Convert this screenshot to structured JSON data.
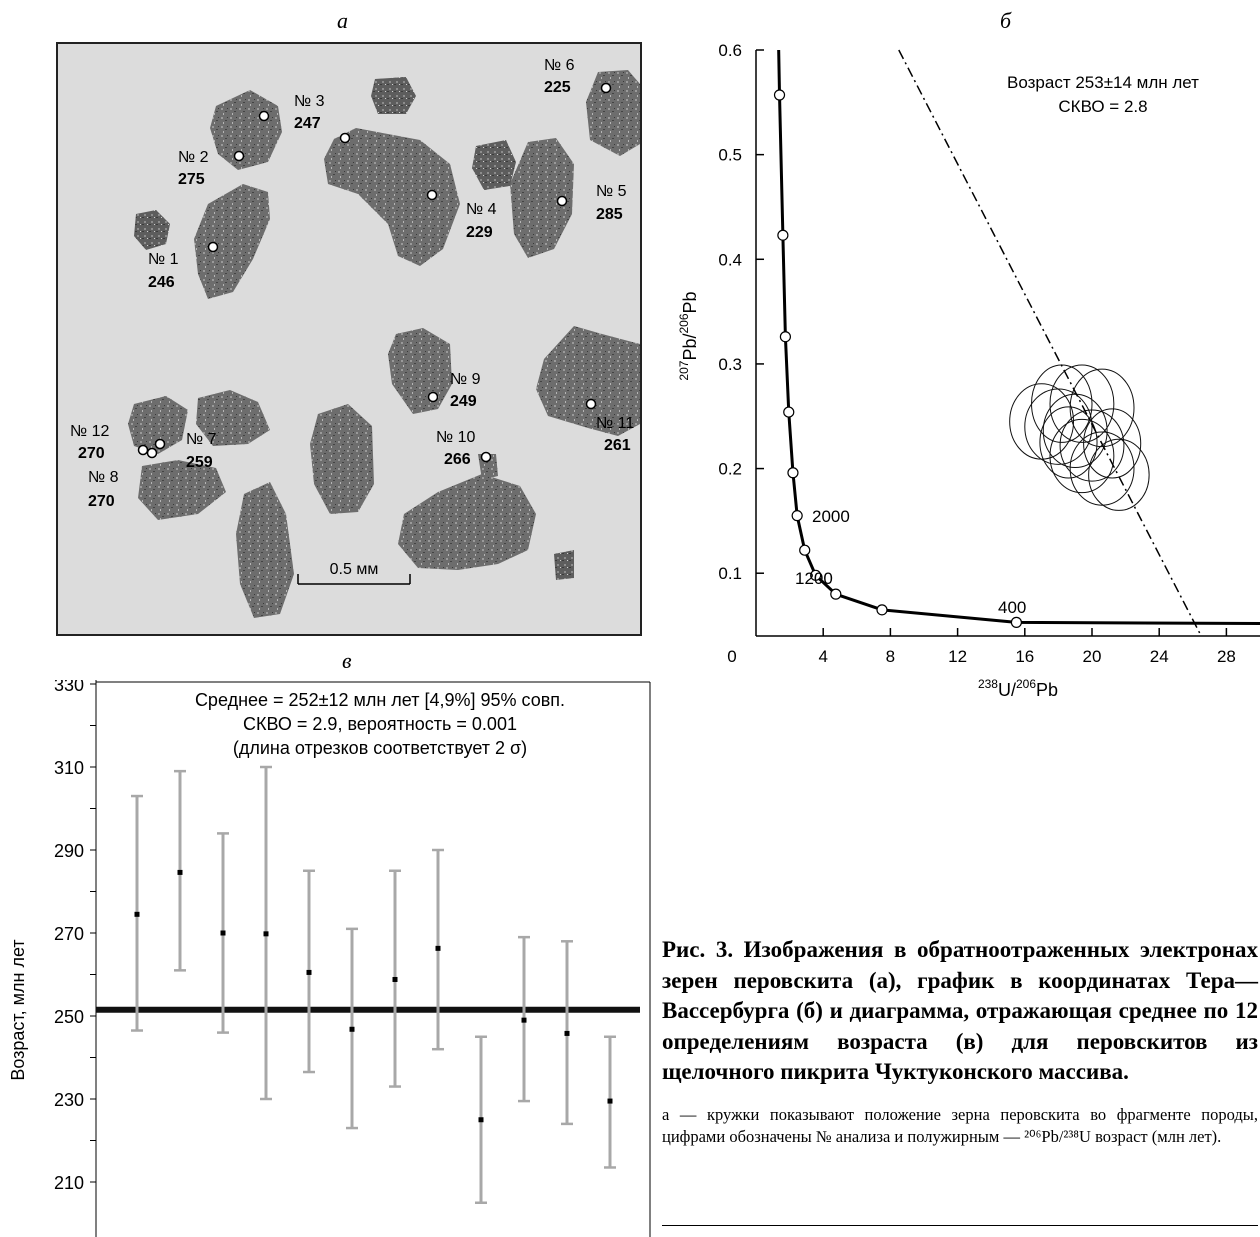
{
  "panel_a": {
    "letter": "а",
    "grains": [
      {
        "num": "№ 1",
        "age": "246"
      },
      {
        "num": "№ 2",
        "age": "275"
      },
      {
        "num": "№ 3",
        "age": "247"
      },
      {
        "num": "№ 4",
        "age": "229"
      },
      {
        "num": "№ 5",
        "age": "285"
      },
      {
        "num": "№ 6",
        "age": "225"
      },
      {
        "num": "№ 7",
        "age": "259"
      },
      {
        "num": "№ 8",
        "age": "270"
      },
      {
        "num": "№ 9",
        "age": "249"
      },
      {
        "num": "№ 10",
        "age": "266"
      },
      {
        "num": "№ 11",
        "age": "261"
      },
      {
        "num": "№ 12",
        "age": "270"
      }
    ],
    "scale_label": "0.5 мм"
  },
  "chart_data": [
    {
      "id": "б",
      "type": "scatter",
      "letter": "б",
      "xlabel_main": "U/",
      "xlabel_sup1": "238",
      "xlabel_sup2": "206",
      "xlabel_tail": "Pb",
      "ylabel_sup1": "207",
      "ylabel_mid": "Pb/",
      "ylabel_sup2": "206",
      "ylabel_tail": "Pb",
      "xlim": [
        0,
        30
      ],
      "ylim": [
        0.04,
        0.6
      ],
      "xticks": [
        "0",
        "4",
        "8",
        "12",
        "16",
        "20",
        "24",
        "28"
      ],
      "yticks": [
        "0.1",
        "0.2",
        "0.3",
        "0.4",
        "0.5",
        "0.6"
      ],
      "annotation_line1": "Возраст 253±14 млн лет",
      "annotation_line2": "СКВО = 2.8",
      "concordia_labels": [
        "2000",
        "1200",
        "400"
      ],
      "concordia_points": [
        {
          "x": 1.4,
          "y": 0.557
        },
        {
          "x": 1.6,
          "y": 0.423
        },
        {
          "x": 1.75,
          "y": 0.326
        },
        {
          "x": 1.95,
          "y": 0.254
        },
        {
          "x": 2.2,
          "y": 0.196
        },
        {
          "x": 2.45,
          "y": 0.155
        },
        {
          "x": 2.9,
          "y": 0.122
        },
        {
          "x": 3.55,
          "y": 0.098
        },
        {
          "x": 4.75,
          "y": 0.08
        },
        {
          "x": 7.5,
          "y": 0.065
        },
        {
          "x": 15.5,
          "y": 0.053
        }
      ],
      "discordia": {
        "x1": 8.5,
        "y1": 0.6,
        "x2": 26.5,
        "y2": 0.04
      },
      "ellipses": [
        {
          "x": 17.0,
          "y": 0.245,
          "rx": 1.9,
          "ry": 0.036
        },
        {
          "x": 18.2,
          "y": 0.262,
          "rx": 1.8,
          "ry": 0.037
        },
        {
          "x": 19.4,
          "y": 0.262,
          "rx": 1.9,
          "ry": 0.037
        },
        {
          "x": 20.6,
          "y": 0.258,
          "rx": 1.9,
          "ry": 0.037
        },
        {
          "x": 18.0,
          "y": 0.24,
          "rx": 2.0,
          "ry": 0.036
        },
        {
          "x": 19.0,
          "y": 0.236,
          "rx": 1.9,
          "ry": 0.035
        },
        {
          "x": 18.6,
          "y": 0.225,
          "rx": 1.7,
          "ry": 0.034
        },
        {
          "x": 20.0,
          "y": 0.222,
          "rx": 1.9,
          "ry": 0.034
        },
        {
          "x": 21.2,
          "y": 0.224,
          "rx": 1.7,
          "ry": 0.033
        },
        {
          "x": 19.4,
          "y": 0.212,
          "rx": 1.9,
          "ry": 0.035
        },
        {
          "x": 20.6,
          "y": 0.2,
          "rx": 1.9,
          "ry": 0.035
        },
        {
          "x": 21.6,
          "y": 0.194,
          "rx": 1.8,
          "ry": 0.034
        }
      ]
    },
    {
      "id": "в",
      "type": "scatter",
      "letter": "в",
      "ylabel": "Возраст, млн лет",
      "ylim": [
        200,
        330
      ],
      "yticks": [
        "330",
        "310",
        "290",
        "270",
        "250",
        "230",
        "210"
      ],
      "annotation_line1": "Среднее = 252±12 млн лет [4,9%] 95% совп.",
      "annotation_line2": "СКВО = 2.9, вероятность = 0.001",
      "annotation_line3": "(длина отрезков соответствует 2 σ)",
      "mean": 251.5,
      "x": [
        1,
        2,
        3,
        4,
        5,
        6,
        7,
        8,
        9,
        10,
        11,
        12
      ],
      "values": [
        274.5,
        284.6,
        270.0,
        269.8,
        260.5,
        246.8,
        258.8,
        266.3,
        225.0,
        249.0,
        245.8,
        229.5
      ],
      "err_low": [
        246.5,
        261.0,
        246.0,
        230.0,
        236.5,
        223.0,
        233.0,
        242.0,
        205.0,
        229.5,
        224.0,
        213.5
      ],
      "err_high": [
        303.0,
        309.0,
        294.0,
        310.0,
        285.0,
        271.0,
        285.0,
        290.0,
        245.0,
        269.0,
        268.0,
        245.0
      ]
    }
  ],
  "caption": {
    "title": "Рис. 3. Изображения в обратноотраженных электронах зерен перовскита (а), график в координатах Тера—Вассербурга (б) и диаграмма, отражающая среднее по 12 определениям возраста (в) для перовскитов из щелочного пикрита Чуктуконского массива.",
    "note": "а — кружки показывают положение зерна перовскита во фрагменте породы, цифрами обозначены № анализа и полужирным — ²⁰⁶Pb/²³⁸U возраст (млн лет)."
  }
}
